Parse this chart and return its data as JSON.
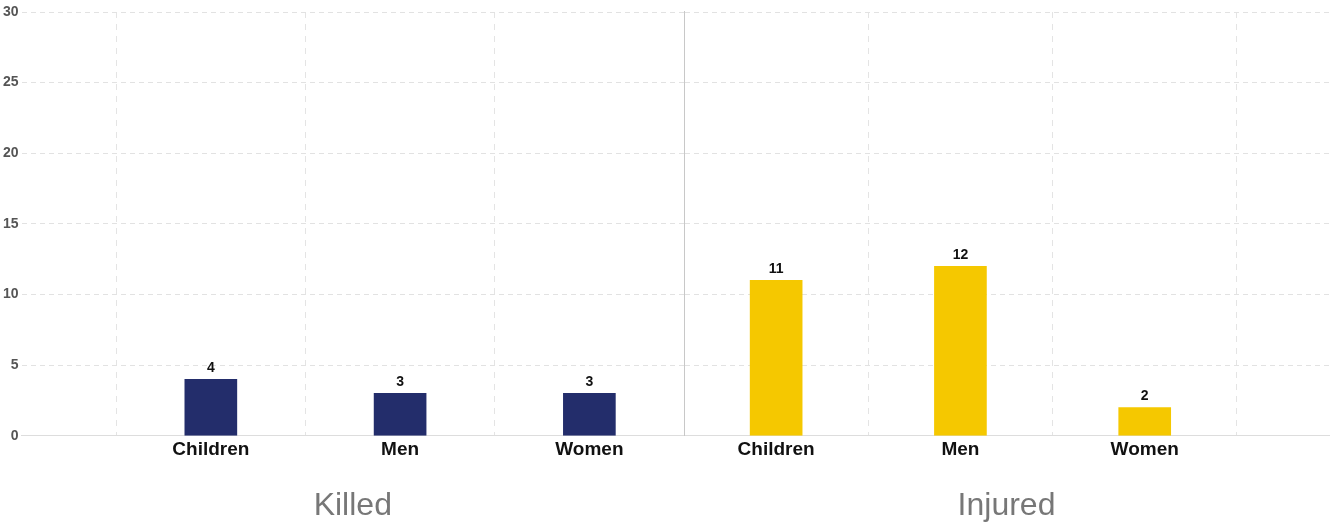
{
  "chart_data": [
    {
      "type": "bar",
      "xlabel": "Killed",
      "categories": [
        "Children",
        "Men",
        "Women"
      ],
      "values": [
        4,
        3,
        3
      ],
      "colors": [
        "#232d6b",
        "#232d6b",
        "#232d6b"
      ],
      "ylim": [
        0,
        30
      ],
      "yticks": [
        0,
        5,
        10,
        15,
        20,
        25,
        30
      ],
      "grid": true,
      "data_labels": true
    },
    {
      "type": "bar",
      "xlabel": "Injured",
      "categories": [
        "Children",
        "Men",
        "Women"
      ],
      "values": [
        11,
        12,
        2
      ],
      "colors": [
        "#f5c800",
        "#f5c800",
        "#f5c800"
      ],
      "ylim": [
        0,
        30
      ],
      "yticks": [
        0,
        5,
        10,
        15,
        20,
        25,
        30
      ],
      "grid": true,
      "data_labels": true,
      "tick_labels": "x"
    }
  ]
}
